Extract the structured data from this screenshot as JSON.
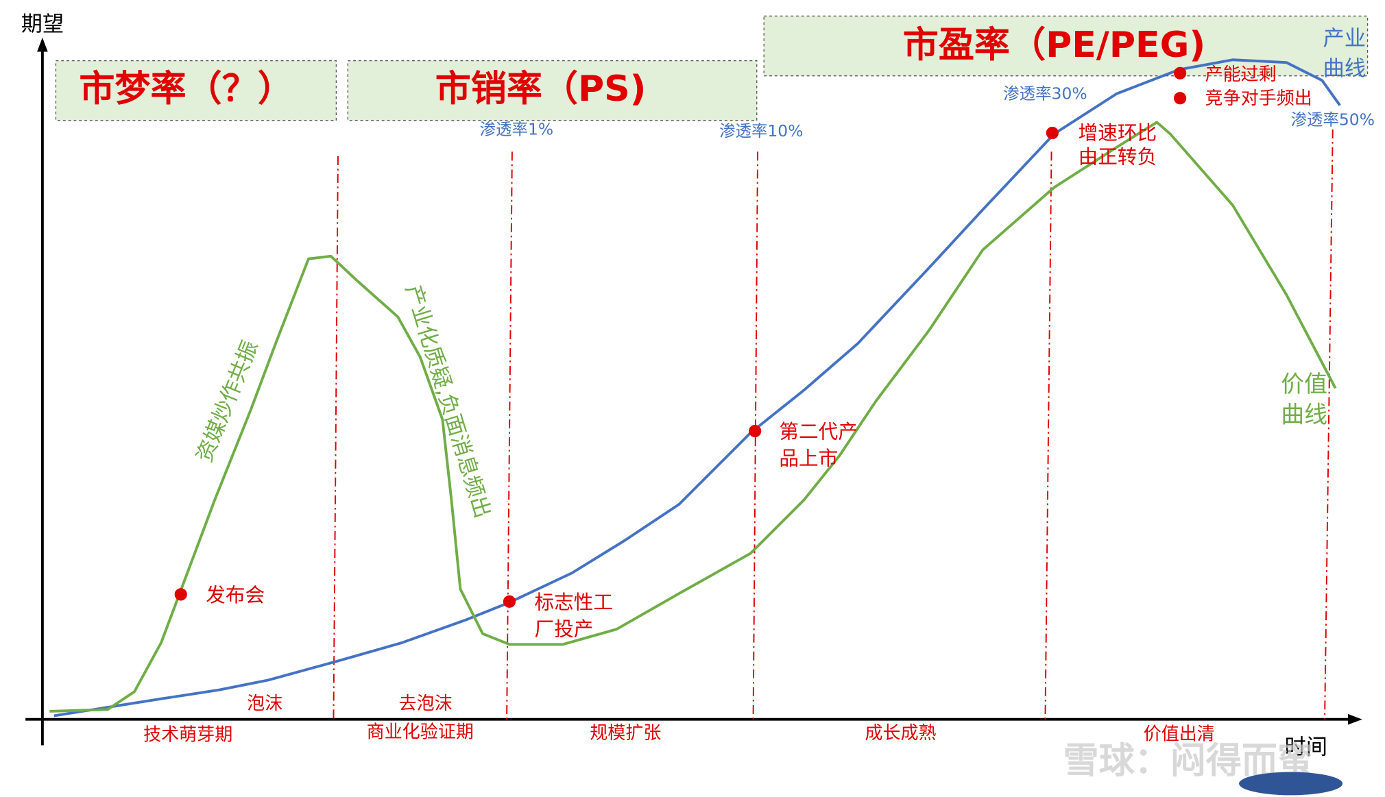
{
  "axes": {
    "y_label": "期望",
    "x_label": "时间"
  },
  "phases": [
    "市梦率（？）",
    "市销率（PS)",
    "市盈率（PE/PEG)"
  ],
  "penetration": [
    "渗透率1%",
    "渗透率10%",
    "渗透率30%",
    "渗透率50%"
  ],
  "curves": {
    "industry": [
      "产业",
      "曲线"
    ],
    "value": [
      "价值",
      "曲线"
    ]
  },
  "events": [
    {
      "lines": [
        "发布会"
      ]
    },
    {
      "lines": [
        "标志性工",
        "厂投产"
      ]
    },
    {
      "lines": [
        "第二代产",
        "品上市"
      ]
    },
    {
      "lines": [
        "增速环比",
        "由正转负"
      ]
    },
    {
      "lines": [
        "产能过剩"
      ]
    },
    {
      "lines": [
        "竞争对手频出"
      ]
    }
  ],
  "annotations": [
    "资媒炒作共振",
    "产业化质疑,负面消息频出"
  ],
  "bubble": [
    "泡沫",
    "去泡沫"
  ],
  "stages": [
    "技术萌芽期",
    "商业化验证期",
    "规模扩张",
    "成长成熟",
    "价值出清"
  ],
  "watermark": "雪球：闷得而蜜"
}
